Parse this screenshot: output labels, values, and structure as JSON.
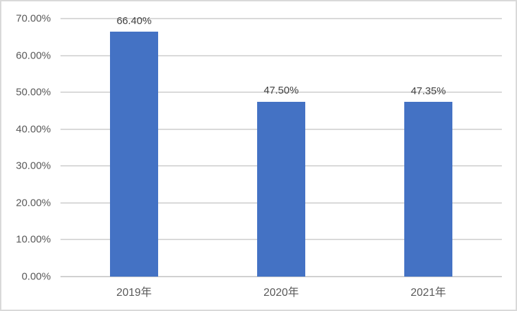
{
  "chart_data": {
    "type": "bar",
    "categories": [
      "2019年",
      "2020年",
      "2021年"
    ],
    "values": [
      66.4,
      47.5,
      47.35
    ],
    "data_labels": [
      "66.40%",
      "47.50%",
      "47.35%"
    ],
    "ytick_labels": [
      "0.00%",
      "10.00%",
      "20.00%",
      "30.00%",
      "40.00%",
      "50.00%",
      "60.00%",
      "70.00%"
    ],
    "ylim": [
      0,
      70
    ],
    "ytick_step": 10,
    "grid": true,
    "legend_position": "none",
    "title": "",
    "xlabel": "",
    "ylabel": "",
    "colors": {
      "bar": "#4472C4",
      "gridline": "#D9D9D9",
      "axis_line": "#D0D0D0",
      "tick_label": "#595959",
      "data_label": "#404040",
      "chart_border": "#D9D9D9",
      "background": "#FFFFFF"
    }
  }
}
